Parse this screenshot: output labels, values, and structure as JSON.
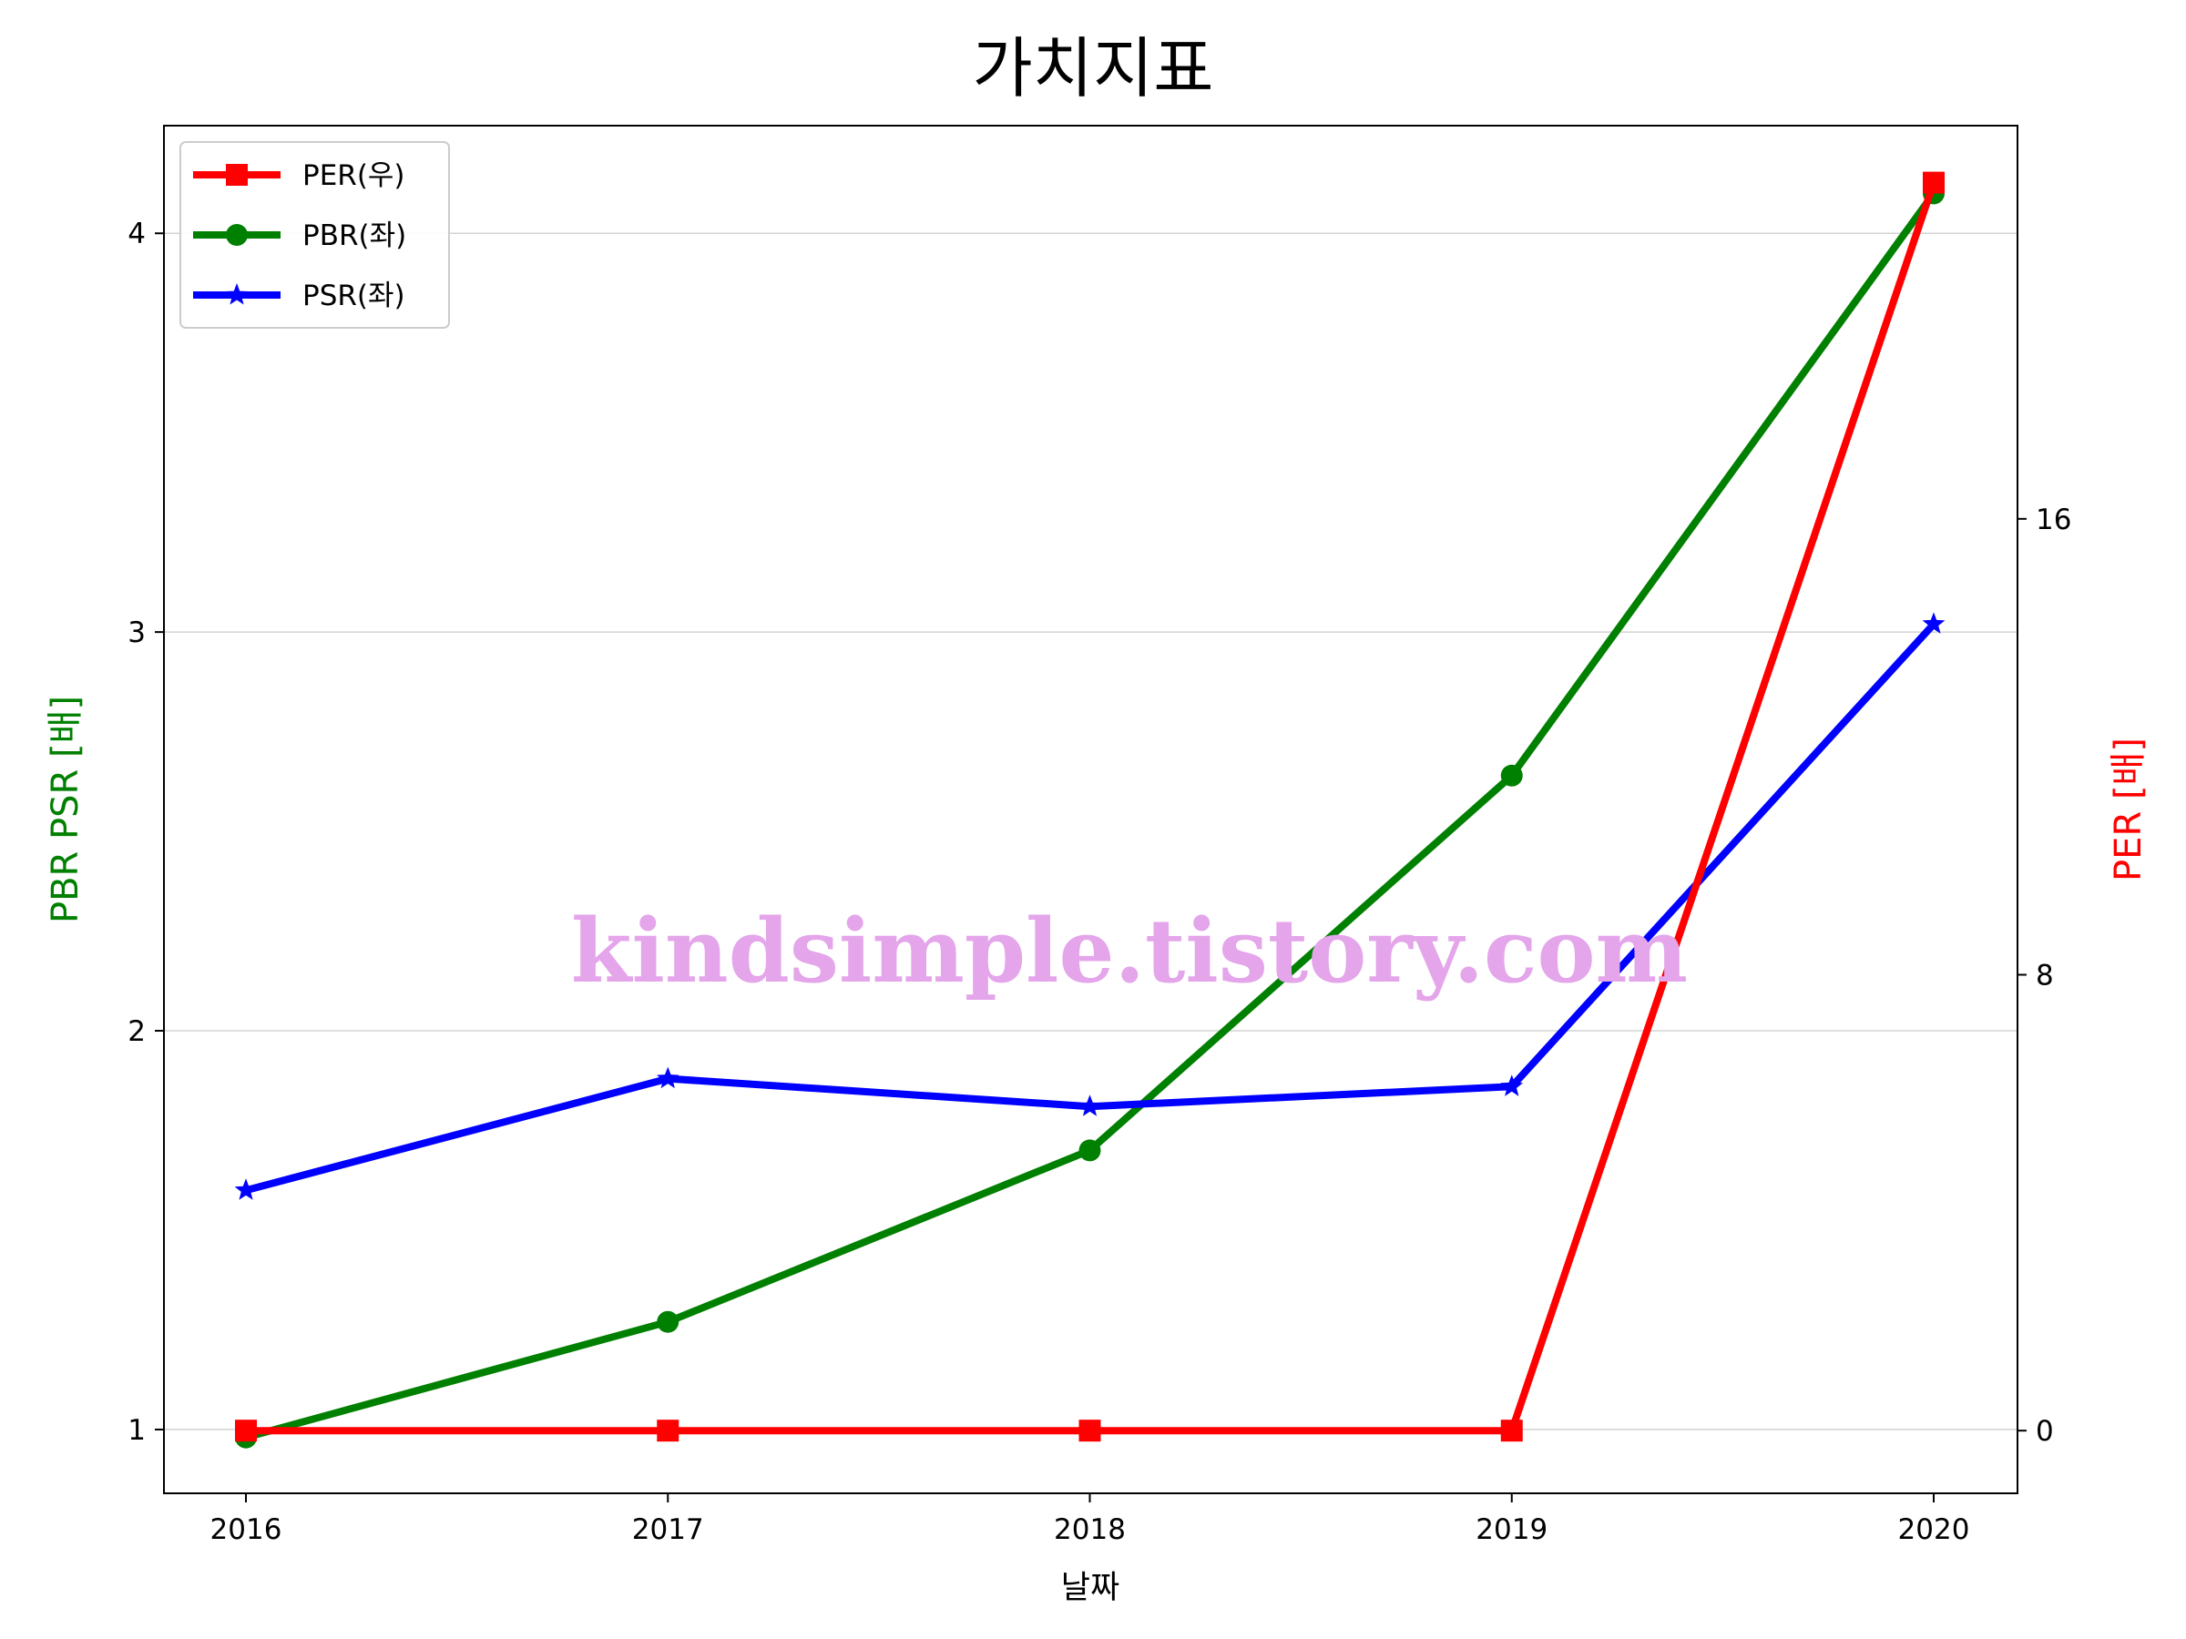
{
  "chart_data": {
    "type": "line",
    "title": "가치지표",
    "xlabel": "날짜",
    "ylabel_left": "PBR PSR [배]",
    "ylabel_right": "PER [배]",
    "categories": [
      "2016",
      "2017",
      "2018",
      "2019",
      "2020"
    ],
    "left_axis": {
      "ylim": [
        0.84,
        4.27
      ],
      "ticks": [
        1,
        2,
        3,
        4
      ],
      "tick_labels": [
        "1",
        "2",
        "3",
        "4"
      ]
    },
    "right_axis": {
      "ylim": [
        -1.1,
        22.9
      ],
      "ticks": [
        0,
        8,
        16
      ],
      "tick_labels": [
        "0",
        "8",
        "16"
      ]
    },
    "grid": "horizontal (left axis)",
    "legend_position": "upper left",
    "series": [
      {
        "name": "PER(우)",
        "axis": "right",
        "color": "#ff0000",
        "marker": "square",
        "values": [
          0,
          0,
          0,
          0,
          21.9
        ]
      },
      {
        "name": "PBR(좌)",
        "axis": "left",
        "color": "#008000",
        "marker": "circle",
        "values": [
          0.98,
          1.27,
          1.7,
          2.64,
          4.1
        ]
      },
      {
        "name": "PSR(좌)",
        "axis": "left",
        "color": "#0000ff",
        "marker": "star",
        "values": [
          1.6,
          1.88,
          1.81,
          1.86,
          3.02
        ]
      }
    ],
    "watermark": "kindsimple.tistory.com"
  }
}
